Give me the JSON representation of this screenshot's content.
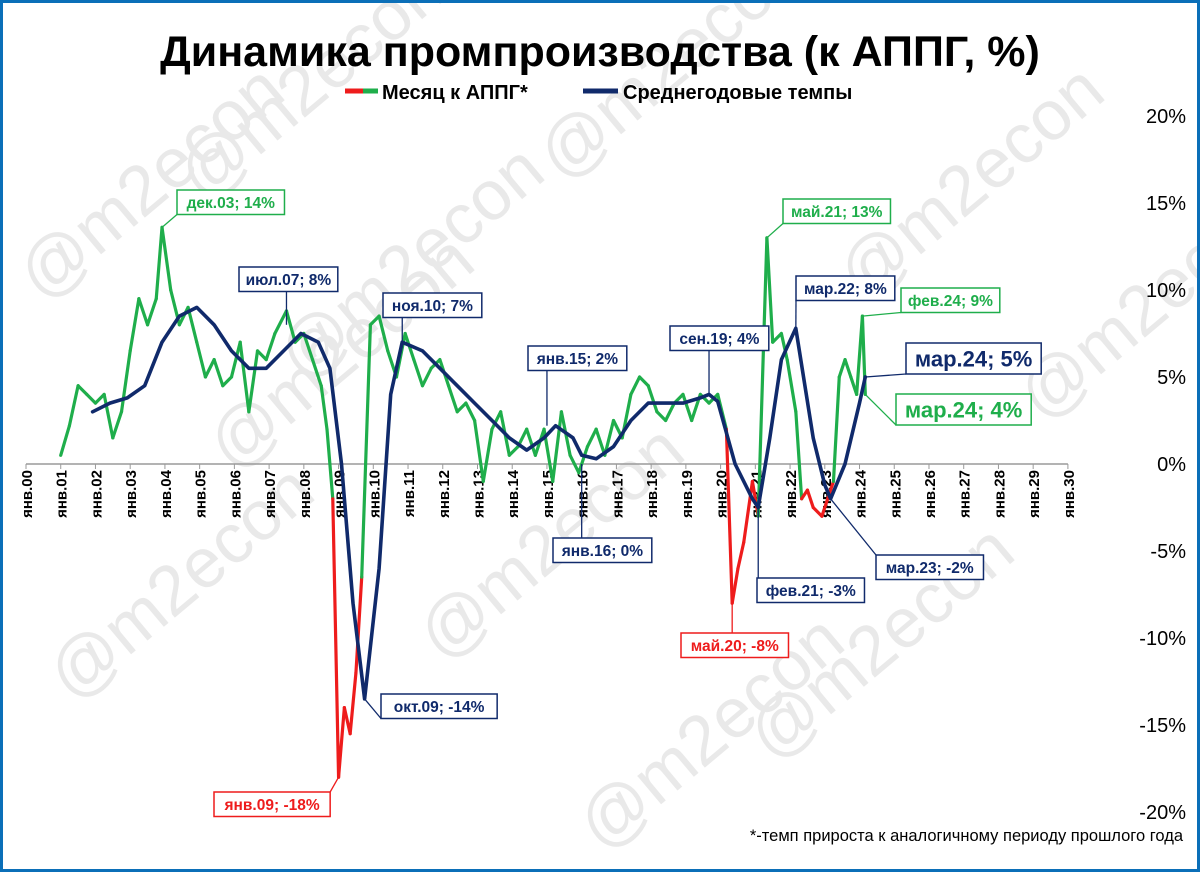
{
  "chart_data": {
    "type": "line",
    "title": "Динамика промпроизводства (к АППГ, %)",
    "xlabel": "",
    "ylabel": "",
    "ylim": [
      -20,
      20
    ],
    "yticks": [
      20,
      15,
      10,
      5,
      0,
      -5,
      -10,
      -15,
      -20
    ],
    "ytick_labels": [
      "20%",
      "15%",
      "10%",
      "5%",
      "0%",
      "-5%",
      "-10%",
      "-15%",
      "-20%"
    ],
    "x_tick_labels": [
      "янв.00",
      "янв.01",
      "янв.02",
      "янв.03",
      "янв.04",
      "янв.05",
      "янв.06",
      "янв.07",
      "янв.08",
      "янв.09",
      "янв.10",
      "янв.11",
      "янв.12",
      "янв.13",
      "янв.14",
      "янв.15",
      "янв.16",
      "янв.17",
      "янв.18",
      "янв.19",
      "янв.20",
      "янв.21",
      "янв.22",
      "янв.23",
      "янв.24",
      "янв.25",
      "янв.26",
      "янв.27",
      "янв.28",
      "янв.29",
      "янв.30"
    ],
    "grid": false,
    "legend_position": "top",
    "footnote": "*-темп прироста к аналогичному периоду прошлого года",
    "watermark": "@m2econ",
    "colors": {
      "positive": "#1fae4b",
      "negative": "#ee1c1c",
      "average": "#102a6b",
      "frame": "#0b6fb8"
    },
    "series": [
      {
        "name": "Месяц к АППГ*",
        "x": [
          "2001-01",
          "2001-04",
          "2001-07",
          "2001-10",
          "2002-01",
          "2002-04",
          "2002-07",
          "2002-10",
          "2003-01",
          "2003-04",
          "2003-07",
          "2003-10",
          "2003-12",
          "2004-03",
          "2004-06",
          "2004-09",
          "2004-12",
          "2005-03",
          "2005-06",
          "2005-09",
          "2005-12",
          "2006-03",
          "2006-06",
          "2006-09",
          "2006-12",
          "2007-03",
          "2007-07",
          "2007-10",
          "2008-01",
          "2008-04",
          "2008-07",
          "2008-09",
          "2008-11",
          "2009-01",
          "2009-03",
          "2009-05",
          "2009-07",
          "2009-09",
          "2009-12",
          "2010-03",
          "2010-06",
          "2010-09",
          "2010-12",
          "2011-03",
          "2011-06",
          "2011-09",
          "2011-12",
          "2012-03",
          "2012-06",
          "2012-09",
          "2012-12",
          "2013-03",
          "2013-06",
          "2013-09",
          "2013-12",
          "2014-03",
          "2014-06",
          "2014-09",
          "2014-12",
          "2015-03",
          "2015-06",
          "2015-09",
          "2015-12",
          "2016-03",
          "2016-06",
          "2016-09",
          "2016-12",
          "2017-03",
          "2017-06",
          "2017-09",
          "2017-12",
          "2018-03",
          "2018-06",
          "2018-09",
          "2018-12",
          "2019-03",
          "2019-06",
          "2019-09",
          "2019-12",
          "2020-03",
          "2020-05",
          "2020-07",
          "2020-09",
          "2020-12",
          "2021-02",
          "2021-05",
          "2021-07",
          "2021-10",
          "2021-12",
          "2022-03",
          "2022-05",
          "2022-07",
          "2022-09",
          "2022-12",
          "2023-02",
          "2023-04",
          "2023-06",
          "2023-08",
          "2023-10",
          "2023-12",
          "2024-02",
          "2024-03"
        ],
        "values": [
          0.5,
          2.2,
          4.5,
          4.0,
          3.5,
          4.0,
          1.5,
          3.0,
          6.5,
          9.5,
          8.0,
          9.5,
          13.6,
          10.0,
          8.0,
          9.0,
          7.0,
          5.0,
          6.0,
          4.5,
          5.0,
          7.0,
          3.0,
          6.5,
          6.0,
          7.5,
          8.8,
          7.0,
          7.5,
          6.0,
          4.5,
          2.0,
          -2.0,
          -18.0,
          -14.0,
          -15.5,
          -12.0,
          -6.5,
          8.0,
          8.5,
          6.5,
          5.0,
          7.5,
          6.0,
          4.5,
          5.5,
          6.0,
          4.5,
          3.0,
          3.5,
          2.5,
          -1.0,
          2.0,
          3.0,
          0.5,
          1.0,
          2.0,
          0.5,
          2.0,
          -1.0,
          3.0,
          0.5,
          -0.5,
          1.0,
          2.0,
          0.5,
          2.5,
          1.5,
          4.0,
          5.0,
          4.5,
          3.0,
          2.5,
          3.5,
          4.0,
          2.5,
          4.0,
          3.5,
          4.0,
          2.0,
          -8.0,
          -6.0,
          -4.5,
          -1.0,
          -3.0,
          13.0,
          7.0,
          7.5,
          6.0,
          3.0,
          -2.0,
          -1.5,
          -2.5,
          -3.0,
          -2.0,
          -1.0,
          5.0,
          6.0,
          5.0,
          4.0,
          8.5,
          4.0
        ]
      },
      {
        "name": "Среднегодовые темпы",
        "x": [
          "2001-12",
          "2002-06",
          "2002-12",
          "2003-06",
          "2003-12",
          "2004-06",
          "2004-12",
          "2005-06",
          "2005-12",
          "2006-06",
          "2006-12",
          "2007-06",
          "2007-12",
          "2008-06",
          "2008-10",
          "2009-02",
          "2009-06",
          "2009-10",
          "2010-03",
          "2010-07",
          "2010-11",
          "2011-06",
          "2011-12",
          "2012-06",
          "2012-12",
          "2013-06",
          "2013-12",
          "2014-06",
          "2014-12",
          "2015-04",
          "2015-10",
          "2016-01",
          "2016-06",
          "2016-12",
          "2017-06",
          "2017-12",
          "2018-06",
          "2018-12",
          "2019-06",
          "2019-09",
          "2019-12",
          "2020-06",
          "2020-12",
          "2021-02",
          "2021-06",
          "2021-10",
          "2022-03",
          "2022-09",
          "2023-01",
          "2023-03",
          "2023-08",
          "2024-01",
          "2024-03"
        ],
        "values": [
          3.0,
          3.5,
          3.8,
          4.5,
          7.0,
          8.5,
          9.0,
          8.0,
          6.5,
          5.5,
          5.5,
          6.5,
          7.5,
          7.0,
          5.5,
          0.0,
          -8.0,
          -13.5,
          -6.0,
          4.0,
          7.0,
          6.5,
          5.5,
          4.5,
          3.5,
          2.5,
          1.5,
          0.8,
          1.5,
          2.2,
          1.5,
          0.5,
          0.3,
          1.0,
          2.5,
          3.5,
          3.5,
          3.5,
          3.8,
          4.0,
          3.6,
          0.0,
          -2.0,
          -2.5,
          1.5,
          6.0,
          7.8,
          1.5,
          -1.2,
          -2.0,
          0.0,
          3.5,
          5.0
        ]
      }
    ],
    "annotations": [
      {
        "label": "дек.03; 14%",
        "x": "2003-12",
        "y": 13.6,
        "color": "green"
      },
      {
        "label": "июл.07; 8%",
        "x": "2007-07",
        "y": 8.0,
        "color": "navy"
      },
      {
        "label": "ноя.10; 7%",
        "x": "2010-11",
        "y": 7.0,
        "color": "navy"
      },
      {
        "label": "янв.15; 2%",
        "x": "2015-01",
        "y": 2.2,
        "color": "navy"
      },
      {
        "label": "сен.19; 4%",
        "x": "2019-09",
        "y": 4.0,
        "color": "navy"
      },
      {
        "label": "май.21; 13%",
        "x": "2021-05",
        "y": 13.0,
        "color": "green"
      },
      {
        "label": "мар.22; 8%",
        "x": "2022-03",
        "y": 7.8,
        "color": "navy"
      },
      {
        "label": "фев.24; 9%",
        "x": "2024-02",
        "y": 8.5,
        "color": "green"
      },
      {
        "label": "мар.24; 5%",
        "x": "2024-03",
        "y": 5.0,
        "color": "navy"
      },
      {
        "label": "мар.24; 4%",
        "x": "2024-03",
        "y": 4.0,
        "color": "green"
      },
      {
        "label": "янв.16; 0%",
        "x": "2016-01",
        "y": 0.0,
        "color": "navy"
      },
      {
        "label": "фев.21; -3%",
        "x": "2021-02",
        "y": -2.5,
        "color": "navy"
      },
      {
        "label": "мар.23; -2%",
        "x": "2023-03",
        "y": -2.0,
        "color": "navy"
      },
      {
        "label": "май.20; -8%",
        "x": "2020-05",
        "y": -8.0,
        "color": "red"
      },
      {
        "label": "окт.09; -14%",
        "x": "2009-10",
        "y": -13.5,
        "color": "navy"
      },
      {
        "label": "янв.09; -18%",
        "x": "2009-01",
        "y": -18.0,
        "color": "red"
      }
    ]
  }
}
